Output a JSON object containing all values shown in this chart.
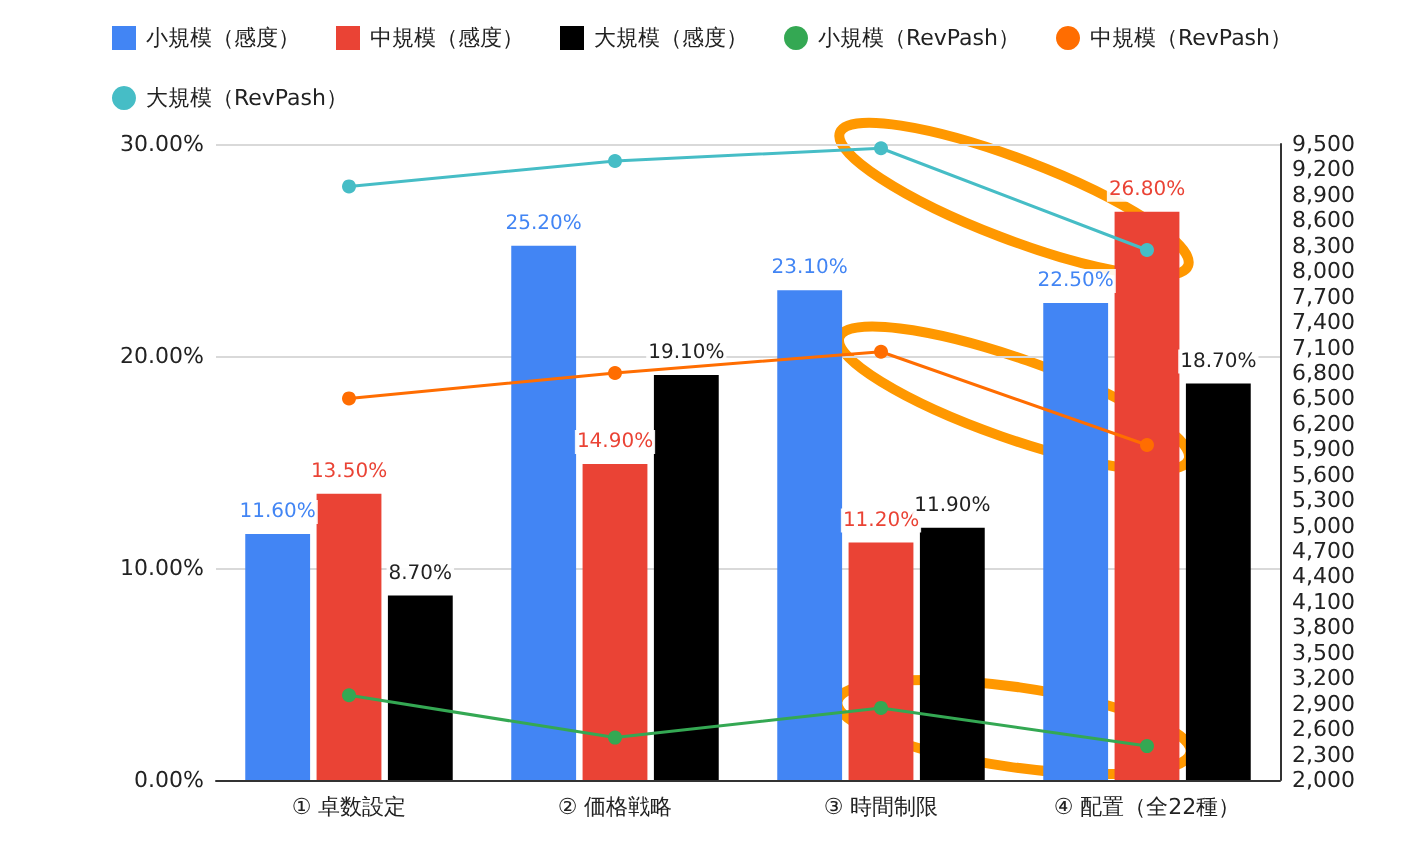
{
  "chart_data": {
    "type": "bar",
    "categories": [
      "① 卓数設定",
      "② 価格戦略",
      "③ 時間制限",
      "④ 配置（全22種）"
    ],
    "series": [
      {
        "name": "小規模（感度）",
        "color": "#4285f4",
        "values": [
          11.6,
          25.2,
          23.1,
          22.5
        ],
        "value_labels": [
          "11.60%",
          "25.20%",
          "23.10%",
          "22.50%"
        ]
      },
      {
        "name": "中規模（感度）",
        "color": "#ea4335",
        "values": [
          13.5,
          14.9,
          11.2,
          26.8
        ],
        "value_labels": [
          "13.50%",
          "14.90%",
          "11.20%",
          "26.80%"
        ]
      },
      {
        "name": "大規模（感度）",
        "color": "#000000",
        "values": [
          8.7,
          19.1,
          11.9,
          18.7
        ],
        "value_labels": [
          "8.70%",
          "19.10%",
          "11.90%",
          "18.70%"
        ]
      },
      {
        "name": "小規模（RevPash）",
        "type": "line",
        "axis": "y2",
        "color": "#34a853",
        "values": [
          3000,
          2500,
          2850,
          2400
        ]
      },
      {
        "name": "中規模（RevPash）",
        "type": "line",
        "axis": "y2",
        "color": "#ff6d01",
        "values": [
          6500,
          6800,
          7050,
          5950
        ]
      },
      {
        "name": "大規模（RevPash）",
        "type": "line",
        "axis": "y2",
        "color": "#46bdc6",
        "values": [
          9000,
          9300,
          9450,
          8250
        ]
      }
    ],
    "ylim": [
      0,
      30
    ],
    "yticks": [
      {
        "value": 0,
        "label": "0.00%"
      },
      {
        "value": 10,
        "label": "10.00%"
      },
      {
        "value": 20,
        "label": "20.00%"
      },
      {
        "value": 30,
        "label": "30.00%"
      }
    ],
    "y2lim": [
      2000,
      9500
    ],
    "y2ticks": [
      {
        "value": 2000,
        "label": "2,000"
      },
      {
        "value": 2300,
        "label": "2,300"
      },
      {
        "value": 2600,
        "label": "2,600"
      },
      {
        "value": 2900,
        "label": "2,900"
      },
      {
        "value": 3200,
        "label": "3,200"
      },
      {
        "value": 3500,
        "label": "3,500"
      },
      {
        "value": 3800,
        "label": "3,800"
      },
      {
        "value": 4100,
        "label": "4,100"
      },
      {
        "value": 4400,
        "label": "4,400"
      },
      {
        "value": 4700,
        "label": "4,700"
      },
      {
        "value": 5000,
        "label": "5,000"
      },
      {
        "value": 5300,
        "label": "5,300"
      },
      {
        "value": 5600,
        "label": "5,600"
      },
      {
        "value": 5900,
        "label": "5,900"
      },
      {
        "value": 6200,
        "label": "6,200"
      },
      {
        "value": 6500,
        "label": "6,500"
      },
      {
        "value": 6800,
        "label": "6,800"
      },
      {
        "value": 7100,
        "label": "7,100"
      },
      {
        "value": 7400,
        "label": "7,400"
      },
      {
        "value": 7700,
        "label": "7,700"
      },
      {
        "value": 8000,
        "label": "8,000"
      },
      {
        "value": 8300,
        "label": "8,300"
      },
      {
        "value": 8600,
        "label": "8,600"
      },
      {
        "value": 8900,
        "label": "8,900"
      },
      {
        "value": 9200,
        "label": "9,200"
      },
      {
        "value": 9500,
        "label": "9,500"
      }
    ],
    "grid": "y",
    "legend": "top",
    "marker": "circle",
    "line_style": "solid"
  }
}
